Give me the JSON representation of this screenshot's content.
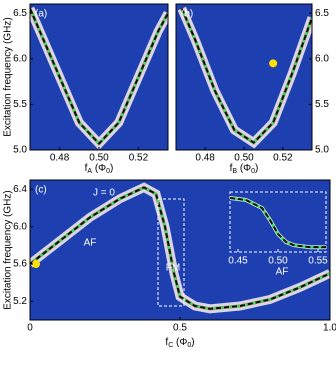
{
  "chart_data": [
    {
      "type": "line",
      "panel_label": "(a)",
      "y_label": "Excitation frequency (GHz)",
      "x_label": [
        "f",
        "A",
        " (Φ",
        "0",
        ")"
      ],
      "x": [
        0.465,
        0.47,
        0.48,
        0.49,
        0.5,
        0.51,
        0.52,
        0.53,
        0.535
      ],
      "values": [
        6.55,
        6.3,
        5.8,
        5.3,
        5.07,
        5.3,
        5.8,
        6.3,
        6.5
      ],
      "color": "#3ddc5a",
      "xlim": [
        0.465,
        0.535
      ],
      "ylim": [
        5.0,
        6.6
      ],
      "xticks": [
        0.48,
        {
          "value": 0.5,
          "label": "0.50"
        },
        0.52
      ],
      "yticks": [
        {
          "value": 5.0,
          "label": "5.0"
        },
        5.5,
        {
          "value": 6.0,
          "label": "6.0"
        },
        6.5
      ]
    },
    {
      "type": "line",
      "panel_label": "(b)",
      "x_label": [
        "f",
        "B",
        " (Φ",
        "0",
        ")"
      ],
      "x": [
        0.468,
        0.475,
        0.485,
        0.495,
        0.505,
        0.515,
        0.525,
        0.535
      ],
      "values": [
        6.55,
        6.2,
        5.65,
        5.22,
        5.08,
        5.3,
        5.85,
        6.45
      ],
      "color": "#3ddc5a",
      "marker": {
        "x": 0.515,
        "y": 5.95,
        "color": "#ffe000"
      },
      "xlim": [
        0.465,
        0.535
      ],
      "ylim": [
        5.0,
        6.6
      ],
      "xticks": [
        0.48,
        {
          "value": 0.5,
          "label": "0.50"
        },
        0.52
      ],
      "yticks": [
        {
          "value": 5.0,
          "label": "5.0"
        },
        5.5,
        {
          "value": 6.0,
          "label": "6.0"
        },
        6.5
      ]
    },
    {
      "type": "line",
      "panel_label": "(c)",
      "y_label": "Excitation frequency (GHz)",
      "x_label": [
        "f",
        "C",
        " (Φ",
        "0",
        ")"
      ],
      "annotations": [
        "J = 0",
        "AF",
        "FM",
        "AF"
      ],
      "x": [
        0,
        0.1,
        0.2,
        0.3,
        0.38,
        0.42,
        0.45,
        0.48,
        0.5,
        0.55,
        0.6,
        0.7,
        0.8,
        0.9,
        1.0
      ],
      "values": [
        5.6,
        5.85,
        6.1,
        6.3,
        6.42,
        6.35,
        6.0,
        5.5,
        5.25,
        5.15,
        5.12,
        5.15,
        5.22,
        5.35,
        5.5
      ],
      "color": "#3ddc5a",
      "marker": {
        "x": 0.02,
        "y": 5.6,
        "color": "#ffe000"
      },
      "xlim": [
        0,
        1.0
      ],
      "ylim": [
        5.0,
        6.5
      ],
      "xticks": [
        0,
        0.5,
        {
          "value": 1.0,
          "label": "1.0"
        }
      ],
      "yticks": [
        5.2,
        5.6,
        {
          "value": 6.0,
          "label": "6.0"
        },
        6.4
      ]
    },
    {
      "type": "line",
      "x": [
        0.44,
        0.46,
        0.48,
        0.49,
        0.5,
        0.51,
        0.52,
        0.54,
        0.56
      ],
      "values": [
        6.35,
        6.3,
        6.1,
        5.8,
        5.45,
        5.25,
        5.17,
        5.12,
        5.12
      ],
      "color": "#3ddc5a",
      "xlim": [
        0.44,
        0.56
      ],
      "ylim": [
        5.0,
        6.5
      ],
      "xticks": [
        0.45,
        {
          "value": 0.5,
          "label": "0.50"
        },
        0.55
      ]
    }
  ]
}
